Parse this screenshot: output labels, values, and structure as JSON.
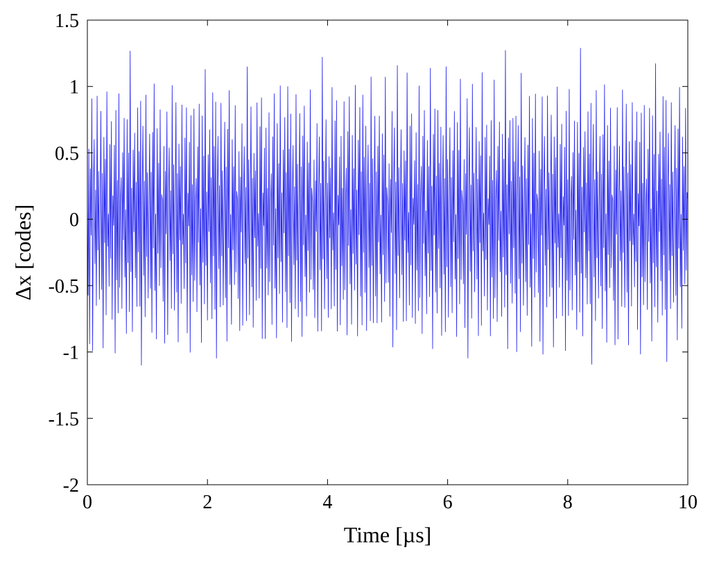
{
  "chart_data": {
    "type": "line",
    "title": "",
    "xlabel": "Time [µs]",
    "ylabel": "Δx [codes]",
    "xlim": [
      0,
      10
    ],
    "ylim": [
      -2,
      1.5
    ],
    "x_ticks": [
      0,
      2,
      4,
      6,
      8,
      10
    ],
    "y_ticks": [
      -2,
      -1.5,
      -1,
      -0.5,
      0,
      0.5,
      1,
      1.5
    ],
    "x_tick_labels": [
      "0",
      "2",
      "4",
      "6",
      "8",
      "10"
    ],
    "y_tick_labels": [
      "-2",
      "-1.5",
      "-1",
      "-0.5",
      "0",
      "0.5",
      "1",
      "1.5"
    ],
    "grid": false,
    "series": [
      {
        "color": "#2a2aee",
        "x_start": 0,
        "x_step": 0.0125,
        "point_count": 801,
        "values": [
          0.15,
          -0.62,
          0.55,
          -0.95,
          0.38,
          -0.12,
          0.93,
          -1.05,
          0.22,
          0.7,
          -0.41,
          0.28,
          -0.85,
          1.22,
          -0.3,
          0.45,
          -0.72,
          0.1,
          0.88,
          -0.55,
          0.35,
          -0.97,
          0.62,
          -0.18,
          0.48,
          -0.8,
          1.12,
          -0.25,
          0.05,
          -0.66,
          0.74,
          -0.38,
          0.92,
          -0.9,
          0.2,
          -0.05,
          0.58,
          -1.02,
          0.82,
          -0.46,
          0.3,
          -0.75,
          1.05,
          -0.6,
          0.15,
          0.4,
          -0.88,
          0.66,
          -0.2,
          0.95,
          -0.52,
          0.08,
          -0.93,
          0.78,
          -0.33,
          0.5,
          -0.7,
          1.3,
          -0.42,
          0.26,
          -0.99,
          0.64,
          -0.12,
          0.85,
          -0.58,
          0.36,
          -0.82,
          1.0,
          -0.28,
          0.55,
          -0.68,
          0.9,
          -1.1,
          0.18,
          0.72,
          -0.45,
          0.32,
          -0.86,
          1.15,
          -0.36,
          0.46,
          -0.78,
          0.12,
          0.8,
          -0.62,
          0.4,
          -0.92,
          0.68,
          -0.22,
          1.02,
          -0.54,
          0.04,
          -0.96,
          0.76,
          -0.3,
          0.52,
          -0.64,
          1.08,
          -0.48,
          0.24
        ],
        "pattern": "repeated across the full 0–10 µs range, amplitude mostly within ±1, peaks to 1.5 and -1.5"
      }
    ]
  }
}
